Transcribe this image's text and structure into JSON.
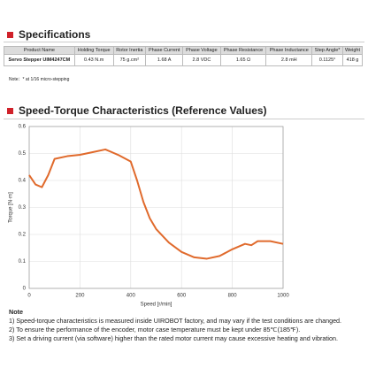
{
  "specs": {
    "title": "Specifications",
    "table": {
      "headers": [
        "Product Name",
        "Holding Torque",
        "Rotor Inertia",
        "Phase Current",
        "Phase Voltage",
        "Phase Resistance",
        "Phase Inductance",
        "Step Angle*",
        "Weight"
      ],
      "rows": [
        [
          "Servo Stepper UIM4247CM",
          "0.43 N.m",
          "75 g.cm²",
          "1.68 A",
          "2.8 VDC",
          "1.65 Ω",
          "2.8 mH",
          "0.1125°",
          "418 g"
        ]
      ]
    },
    "note": "Note：* at 1/16 micro-stepping"
  },
  "chart_section": {
    "title": "Speed-Torque Characteristics (Reference Values)"
  },
  "chart_data": {
    "type": "line",
    "x_label": "Speed [r/min]",
    "y_label": "Torque [N·m]",
    "x": [
      0,
      25,
      50,
      75,
      100,
      150,
      200,
      250,
      300,
      350,
      400,
      425,
      450,
      475,
      500,
      550,
      600,
      650,
      700,
      750,
      800,
      850,
      875,
      900,
      950,
      1000
    ],
    "values": [
      0.42,
      0.385,
      0.375,
      0.42,
      0.48,
      0.49,
      0.495,
      0.505,
      0.515,
      0.495,
      0.47,
      0.4,
      0.32,
      0.26,
      0.22,
      0.17,
      0.135,
      0.115,
      0.11,
      0.12,
      0.145,
      0.165,
      0.16,
      0.175,
      0.175,
      0.165
    ],
    "color": "#e06a2c",
    "xlim": [
      0,
      1000
    ],
    "xticks": [
      0,
      200,
      400,
      600,
      800,
      1000
    ],
    "ylim": [
      0,
      0.6
    ],
    "yticks": [
      0,
      0.1,
      0.2,
      0.3,
      0.4,
      0.5,
      0.6
    ],
    "grid": true
  },
  "notes": {
    "title": "Note",
    "items": [
      "1)  Speed-torque characteristics is measured inside UIROBOT factory, and may vary if the test conditions are changed.",
      "2)  To ensure the performance of the encoder, motor case temperature must be kept under 85℃(185℉).",
      "3)  Set a driving current (via software) higher than the rated motor current may cause excessive heating and vibration."
    ]
  }
}
